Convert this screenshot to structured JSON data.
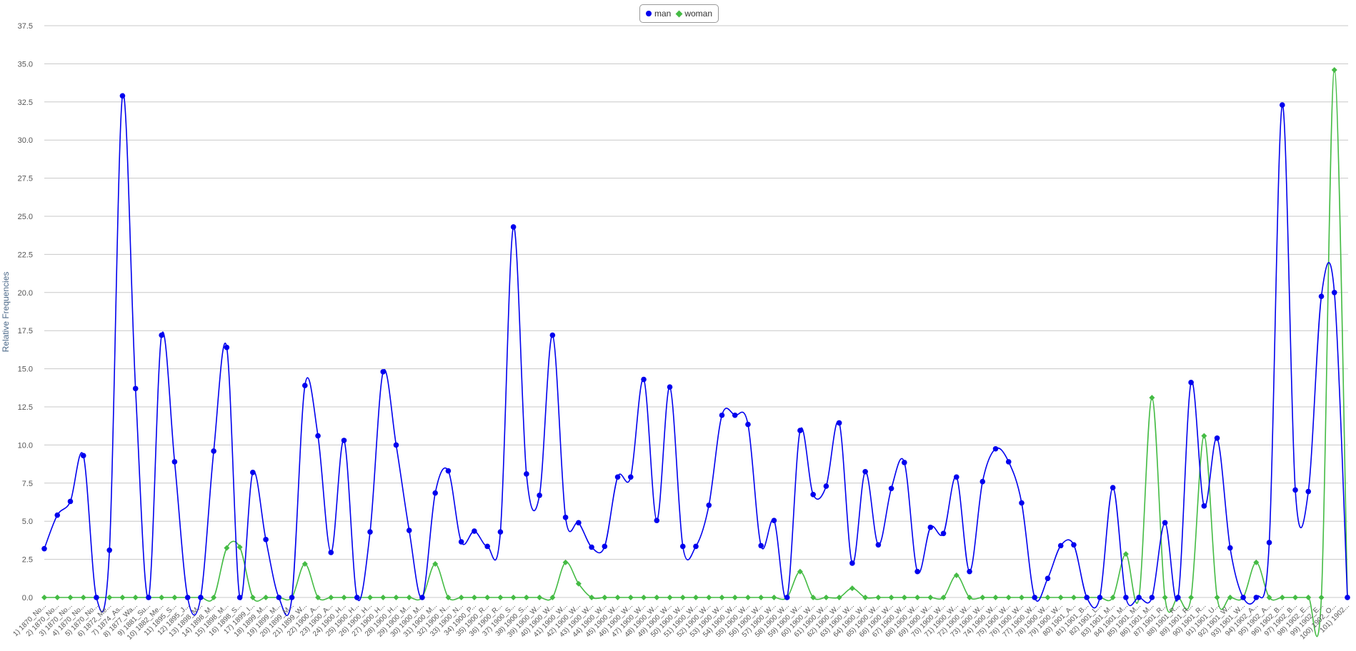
{
  "chart_data": {
    "type": "line",
    "ylabel": "Relative Frequencies",
    "ylim": [
      0,
      37.5
    ],
    "yticks": [
      "0.0",
      "2.5",
      "5.0",
      "7.5",
      "10.0",
      "12.5",
      "15.0",
      "17.5",
      "20.0",
      "22.5",
      "25.0",
      "27.5",
      "30.0",
      "32.5",
      "35.0",
      "37.5"
    ],
    "grid": true,
    "legend_position": "top-center",
    "colors": {
      "man": "#0000ee",
      "woman": "#44bb44",
      "grid": "#c8c8c8",
      "axis_text": "#555555"
    },
    "categories": [
      "1) 1870_No...",
      "2) 1870_No...",
      "3) 1870_No...",
      "4) 1870_No...",
      "5) 1870_No...",
      "6) 1872_Me...",
      "7) 1874_As...",
      "8) 1877_Wa...",
      "9) 1881_Su...",
      "10) 1882_Me...",
      "11) 1895_S...",
      "12) 1895_J...",
      "13) 1898_M...",
      "14) 1898_M...",
      "15) 1898_M...",
      "16) 1898_S...",
      "17) 1899_I...",
      "18) 1899_M...",
      "19) 1899_M...",
      "20) 1899_M...",
      "21) 1899_W...",
      "22) 1900_A...",
      "23) 1900_A...",
      "24) 1900_H...",
      "25) 1900_H...",
      "26) 1900_H...",
      "27) 1900_H...",
      "28) 1900_H...",
      "29) 1900_M...",
      "30) 1900_M...",
      "31) 1900_M...",
      "32) 1900_N...",
      "33) 1900_N...",
      "34) 1900_P...",
      "35) 1900_R...",
      "36) 1900_R...",
      "37) 1900_S...",
      "38) 1900_S...",
      "39) 1900_W...",
      "40) 1900_W...",
      "41) 1900_W...",
      "42) 1900_W...",
      "43) 1900_W...",
      "44) 1900_W...",
      "45) 1900_W...",
      "46) 1900_W...",
      "47) 1900_W...",
      "48) 1900_W...",
      "49) 1900_W...",
      "50) 1900_W...",
      "51) 1900_W...",
      "52) 1900_W...",
      "53) 1900_W...",
      "54) 1900_W...",
      "55) 1900_W...",
      "56) 1900_W...",
      "57) 1900_W...",
      "58) 1900_W...",
      "59) 1900_W...",
      "60) 1900_W...",
      "61) 1900_W...",
      "62) 1900_W...",
      "63) 1900_W...",
      "64) 1900_W...",
      "65) 1900_W...",
      "66) 1900_W...",
      "67) 1900_W...",
      "68) 1900_W...",
      "69) 1900_W...",
      "70) 1900_W...",
      "71) 1900_W...",
      "72) 1900_W...",
      "73) 1900_W...",
      "74) 1900_W...",
      "75) 1900_W...",
      "76) 1900_W...",
      "77) 1900_W...",
      "78) 1900_W...",
      "79) 1900_W...",
      "80) 1901_A...",
      "81) 1901_B...",
      "82) 1901_L...",
      "83) 1901_M...",
      "84) 1901_M...",
      "85) 1901_M...",
      "86) 1901_M...",
      "87) 1901_R...",
      "88) 1901_R...",
      "89) 1901_R...",
      "90) 1901_R...",
      "91) 1901_U...",
      "92) 1901_W...",
      "93) 1901_W...",
      "94) 1902_A...",
      "95) 1902_A...",
      "96) 1902_B...",
      "97) 1902_B...",
      "98) 1902_E...",
      "99) 1902_E...",
      "100) 1902_O...",
      "101) 1902..."
    ],
    "label_step": 1,
    "series": [
      {
        "name": "man",
        "marker": "circle",
        "values": [
          3.2,
          5.4,
          6.3,
          9.3,
          0,
          3.1,
          32.9,
          13.7,
          0,
          17.2,
          8.9,
          0,
          0,
          9.6,
          16.4,
          0,
          8.2,
          3.8,
          0,
          0,
          13.9,
          10.6,
          2.95,
          10.3,
          0,
          4.3,
          14.8,
          10.0,
          4.4,
          0,
          6.85,
          8.3,
          3.65,
          4.35,
          3.35,
          4.3,
          24.3,
          8.1,
          6.7,
          17.2,
          5.25,
          4.9,
          3.3,
          3.35,
          7.9,
          7.9,
          14.3,
          5.05,
          13.8,
          3.35,
          3.35,
          6.05,
          11.95,
          11.95,
          11.35,
          3.4,
          5.05,
          0,
          10.95,
          6.75,
          7.3,
          11.45,
          2.25,
          8.25,
          3.45,
          7.15,
          8.85,
          1.7,
          4.6,
          4.2,
          7.9,
          1.7,
          7.6,
          9.75,
          8.9,
          6.2,
          0,
          1.25,
          3.4,
          3.45,
          0,
          0,
          7.2,
          0,
          0,
          0,
          4.9,
          0,
          14.1,
          6.0,
          10.45,
          3.25,
          0,
          0,
          3.6,
          32.3,
          7.05,
          6.95,
          19.75,
          20.0,
          0
        ]
      },
      {
        "name": "woman",
        "marker": "diamond",
        "values": [
          0,
          0,
          0,
          0,
          0,
          0,
          0,
          0,
          0,
          0,
          0,
          0,
          0,
          0,
          3.25,
          3.3,
          0,
          0,
          0,
          0,
          2.2,
          0,
          0,
          0,
          0,
          0,
          0,
          0,
          0,
          0,
          2.2,
          0,
          0,
          0,
          0,
          0,
          0,
          0,
          0,
          0,
          2.3,
          0.9,
          0,
          0,
          0,
          0,
          0,
          0,
          0,
          0,
          0,
          0,
          0,
          0,
          0,
          0,
          0,
          0,
          1.7,
          0,
          0,
          0,
          0.6,
          0,
          0,
          0,
          0,
          0,
          0,
          0,
          1.45,
          0,
          0,
          0,
          0,
          0,
          0,
          0,
          0,
          0,
          0,
          0,
          0,
          2.85,
          0,
          13.1,
          0,
          0,
          0,
          10.6,
          0,
          0,
          0,
          2.3,
          0,
          0,
          0,
          0,
          0,
          34.6,
          0
        ]
      }
    ]
  }
}
